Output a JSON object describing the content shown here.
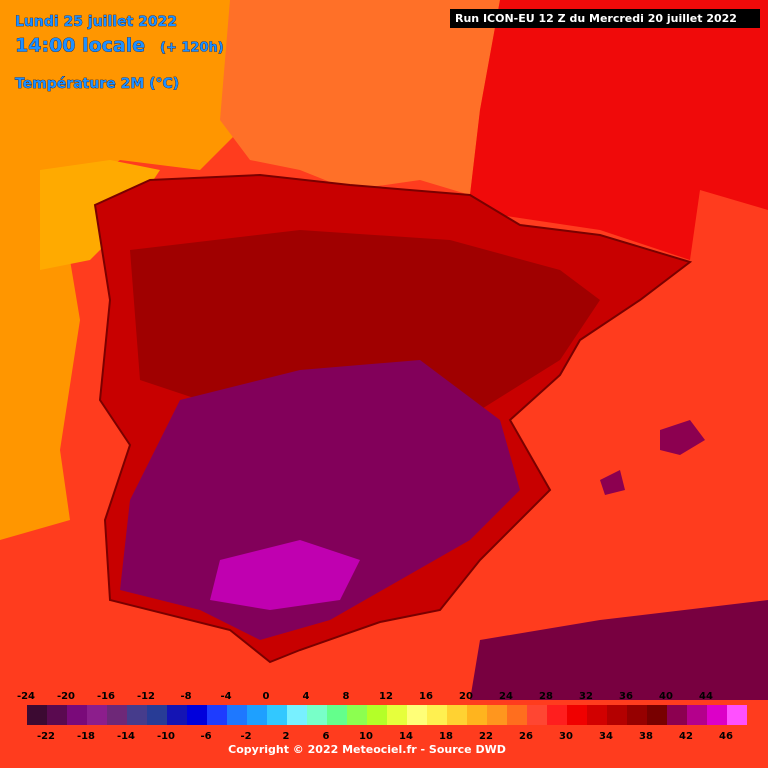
{
  "header": {
    "date": "Lundi 25 juillet 2022",
    "time": "14:00 locale",
    "lead": "(+ 120h)",
    "parameter": "Température 2M (°C)",
    "run": "Run ICON-EU 12 Z du Mercredi 20 juillet 2022"
  },
  "legend": {
    "items": [
      {
        "value": -24,
        "color": "#3c0a32"
      },
      {
        "value": -22,
        "color": "#5a0a50"
      },
      {
        "value": -20,
        "color": "#7a0a7a"
      },
      {
        "value": -18,
        "color": "#8c1e8c"
      },
      {
        "value": -16,
        "color": "#6e2878"
      },
      {
        "value": -14,
        "color": "#463c8c"
      },
      {
        "value": -12,
        "color": "#283c96"
      },
      {
        "value": -10,
        "color": "#1414b4"
      },
      {
        "value": -8,
        "color": "#0000dc"
      },
      {
        "value": -6,
        "color": "#1e3cff"
      },
      {
        "value": -4,
        "color": "#1e78ff"
      },
      {
        "value": -2,
        "color": "#1ea0ff"
      },
      {
        "value": 0,
        "color": "#32c8ff"
      },
      {
        "value": 2,
        "color": "#78f0ff"
      },
      {
        "value": 4,
        "color": "#78ffc8"
      },
      {
        "value": 6,
        "color": "#64ff8c"
      },
      {
        "value": 8,
        "color": "#8cff50"
      },
      {
        "value": 10,
        "color": "#b4ff28"
      },
      {
        "value": 12,
        "color": "#e6ff3c"
      },
      {
        "value": 14,
        "color": "#ffff78"
      },
      {
        "value": 16,
        "color": "#fff050"
      },
      {
        "value": 18,
        "color": "#ffd232"
      },
      {
        "value": 20,
        "color": "#ffb41e"
      },
      {
        "value": 22,
        "color": "#ff961e"
      },
      {
        "value": 24,
        "color": "#ff6e1e"
      },
      {
        "value": 26,
        "color": "#ff4632"
      },
      {
        "value": 28,
        "color": "#ff1e1e"
      },
      {
        "value": 30,
        "color": "#f00000"
      },
      {
        "value": 32,
        "color": "#d20000"
      },
      {
        "value": 34,
        "color": "#b40000"
      },
      {
        "value": 36,
        "color": "#960000"
      },
      {
        "value": 38,
        "color": "#780000"
      },
      {
        "value": 40,
        "color": "#8c0050"
      },
      {
        "value": 42,
        "color": "#b4008c"
      },
      {
        "value": 44,
        "color": "#dc00c8"
      },
      {
        "value": 46,
        "color": "#ff50ff"
      }
    ]
  },
  "footer": {
    "copyright": "Copyright © 2022 Meteociel.fr - Source DWD"
  }
}
